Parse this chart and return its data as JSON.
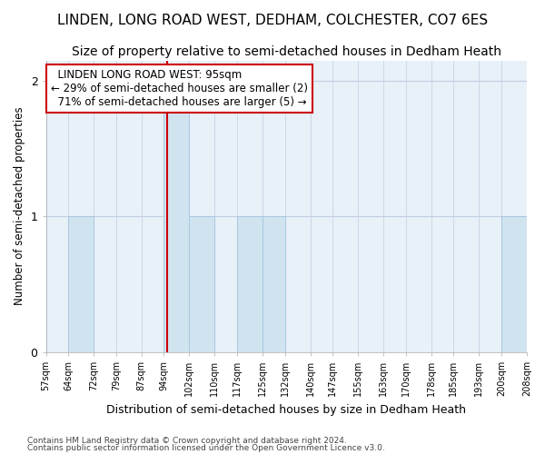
{
  "title": "LINDEN, LONG ROAD WEST, DEDHAM, COLCHESTER, CO7 6ES",
  "subtitle": "Size of property relative to semi-detached houses in Dedham Heath",
  "xlabel": "Distribution of semi-detached houses by size in Dedham Heath",
  "ylabel": "Number of semi-detached properties",
  "footnote1": "Contains HM Land Registry data © Crown copyright and database right 2024.",
  "footnote2": "Contains public sector information licensed under the Open Government Licence v3.0.",
  "bin_edges": [
    57,
    64,
    72,
    79,
    87,
    94,
    102,
    110,
    117,
    125,
    132,
    140,
    147,
    155,
    163,
    170,
    178,
    185,
    193,
    200,
    208
  ],
  "bin_counts": [
    0,
    1,
    0,
    0,
    0,
    2,
    1,
    0,
    1,
    1,
    0,
    0,
    0,
    0,
    0,
    0,
    0,
    0,
    0,
    1
  ],
  "bar_color": "#d0e4f0",
  "bar_edge_color": "#a8c8e0",
  "property_size": 95,
  "property_label": "LINDEN LONG ROAD WEST: 95sqm",
  "pct_smaller": 29,
  "n_smaller": 2,
  "pct_larger": 71,
  "n_larger": 5,
  "annotation_box_color": "#ffffff",
  "annotation_box_edge_color": "#cc0000",
  "vline_color": "#cc0000",
  "yticks": [
    0,
    1,
    2
  ],
  "ylim": [
    0,
    2.15
  ],
  "background_color": "#ffffff",
  "plot_background_color": "#e8f0f8",
  "grid_color": "#c0cfe0",
  "title_fontsize": 11,
  "subtitle_fontsize": 10
}
